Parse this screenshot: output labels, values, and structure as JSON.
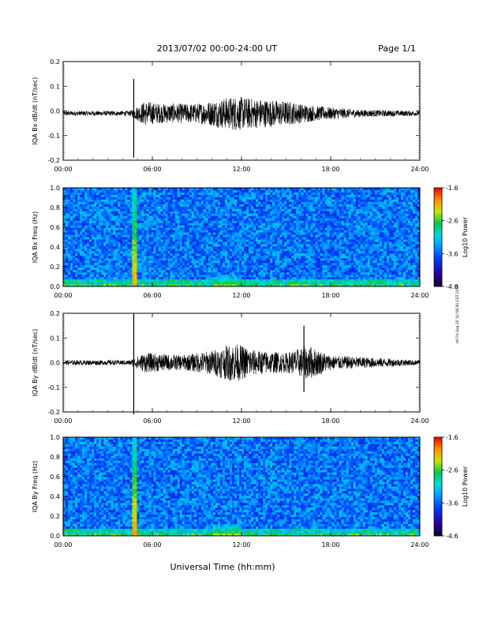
{
  "header": {
    "title": "2013/07/02  00:00-24:00 UT",
    "page": "Page 1/1"
  },
  "xlabel": "Universal Time (hh:mm)",
  "side_note": "ref  Fri Sep 20 10:58:50 CST 2019",
  "chart_data": [
    {
      "type": "line",
      "ylabel": "IQA Bx dB/dt (nT/sec)",
      "ylim": [
        -0.2,
        0.2
      ],
      "yticks": [
        "0.2",
        "0.1",
        "0.0",
        "-0.1",
        "-0.2"
      ],
      "xticks": [
        "00:00",
        "06:00",
        "12:00",
        "18:00",
        "24:00"
      ],
      "xlim_hours": [
        0,
        24
      ],
      "baseline": -0.01,
      "spike": {
        "hour": 4.75,
        "max": 0.13,
        "min": -0.19
      },
      "envelope": [
        {
          "hour": 0,
          "amp": 0.01
        },
        {
          "hour": 4.5,
          "amp": 0.01
        },
        {
          "hour": 5.5,
          "amp": 0.05
        },
        {
          "hour": 6.5,
          "amp": 0.04
        },
        {
          "hour": 9,
          "amp": 0.04
        },
        {
          "hour": 11.5,
          "amp": 0.07
        },
        {
          "hour": 13,
          "amp": 0.06
        },
        {
          "hour": 15,
          "amp": 0.05
        },
        {
          "hour": 17,
          "amp": 0.03
        },
        {
          "hour": 20,
          "amp": 0.015
        },
        {
          "hour": 24,
          "amp": 0.01
        }
      ]
    },
    {
      "type": "heatmap",
      "ylabel": "IQA Bx Freq (Hz)",
      "ylim": [
        0.0,
        1.0
      ],
      "yticks": [
        "1.0",
        "0.8",
        "0.6",
        "0.4",
        "0.2",
        "0.0"
      ],
      "xticks": [
        "00:00",
        "06:00",
        "12:00",
        "18:00",
        "24:00"
      ],
      "colorbar": {
        "label": "Log10 Power",
        "min": -4.6,
        "max": -1.6,
        "ticks": [
          "-1.6",
          "-2.6",
          "-3.6",
          "-4.6"
        ]
      },
      "features": [
        {
          "kind": "vertical-line",
          "hour": 4.75,
          "level": 0.85
        },
        {
          "kind": "vertical-line",
          "hour": 5.5,
          "level": 0.45
        },
        {
          "kind": "low-freq-enhancement",
          "hour_start": 10,
          "hour_end": 12,
          "level": 0.7
        }
      ]
    },
    {
      "type": "line",
      "ylabel": "IQA By dB/dt (nT/sec)",
      "ylim": [
        -0.2,
        0.2
      ],
      "yticks": [
        "0.2",
        "0.1",
        "0.0",
        "-0.1",
        "-0.2"
      ],
      "xticks": [
        "00:00",
        "06:00",
        "12:00",
        "18:00",
        "24:00"
      ],
      "xlim_hours": [
        0,
        24
      ],
      "baseline": 0.0,
      "spike": {
        "hour": 4.75,
        "max": 0.2,
        "min": -0.21
      },
      "spike2": {
        "hour": 16.2,
        "max": 0.15,
        "min": -0.12
      },
      "envelope": [
        {
          "hour": 0,
          "amp": 0.01
        },
        {
          "hour": 4.5,
          "amp": 0.01
        },
        {
          "hour": 5.5,
          "amp": 0.04
        },
        {
          "hour": 8,
          "amp": 0.03
        },
        {
          "hour": 10,
          "amp": 0.05
        },
        {
          "hour": 11.5,
          "amp": 0.08
        },
        {
          "hour": 13,
          "amp": 0.05
        },
        {
          "hour": 15,
          "amp": 0.04
        },
        {
          "hour": 16.5,
          "amp": 0.07
        },
        {
          "hour": 18,
          "amp": 0.03
        },
        {
          "hour": 24,
          "amp": 0.01
        }
      ]
    },
    {
      "type": "heatmap",
      "ylabel": "IQA By Freq (Hz)",
      "ylim": [
        0.0,
        1.0
      ],
      "yticks": [
        "1.0",
        "0.8",
        "0.6",
        "0.4",
        "0.2",
        "0.0"
      ],
      "xticks": [
        "00:00",
        "06:00",
        "12:00",
        "18:00",
        "24:00"
      ],
      "colorbar": {
        "label": "Log10 Power",
        "min": -4.6,
        "max": -1.6,
        "ticks": [
          "-1.6",
          "-2.6",
          "-3.6",
          "-4.6"
        ]
      },
      "features": [
        {
          "kind": "vertical-line",
          "hour": 4.75,
          "level": 0.85
        },
        {
          "kind": "low-freq-enhancement",
          "hour_start": 10,
          "hour_end": 12,
          "level": 0.75
        }
      ]
    }
  ]
}
